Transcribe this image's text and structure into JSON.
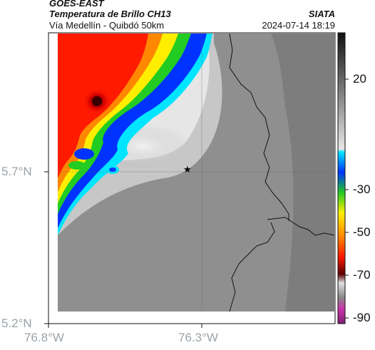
{
  "header": {
    "satellite": "GOES-EAST",
    "product": "Temperatura de Brillo CH13",
    "region": "Vía Medellín - Quibdó 50km",
    "agency": "SIATA",
    "datetime": "2024-07-14 18:19"
  },
  "axes": {
    "y_labels": [
      "5.7°N",
      "5.2°N"
    ],
    "x_labels": [
      "76.8°W",
      "76.3°W"
    ]
  },
  "marker": {
    "icon": "star-icon",
    "glyph": "★"
  },
  "colorbar": {
    "ticks": [
      "20",
      "-30",
      "-50",
      "-70",
      "-90"
    ],
    "colors": {
      "warm_top": "#1a1a1a",
      "grey_mid": "#bdbdbd",
      "cyan": "#00e5ff",
      "blue": "#0033ff",
      "green": "#22cc22",
      "yellow": "#ffee00",
      "orange": "#ff8800",
      "red": "#ff1a00",
      "dark_red": "#5a0000",
      "magenta": "#cc33aa"
    }
  },
  "colors": {
    "map_grey": "#8f8f8f",
    "cloud_light": "#e8e8e8",
    "border_line": "#111111"
  }
}
